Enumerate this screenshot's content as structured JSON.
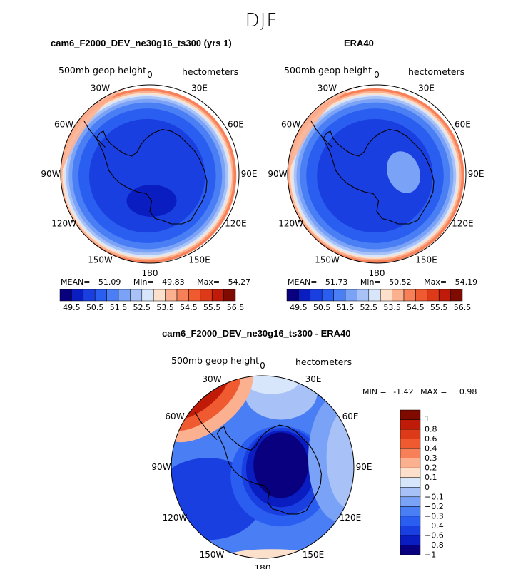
{
  "figure_title": "DJF",
  "colors": {
    "abs_scale": [
      "#08007e",
      "#0a1dc0",
      "#1a3fe0",
      "#2a5ef0",
      "#4a7ef4",
      "#7aa2f6",
      "#a8c2f8",
      "#d8e6fb",
      "#fde0cc",
      "#fbb090",
      "#f88058",
      "#ef5a30",
      "#dc3a18",
      "#c01a08",
      "#7e0a00"
    ],
    "diff_scale": [
      "#08007e",
      "#0a1dc0",
      "#1a3fe0",
      "#2a5ef0",
      "#4a7ef4",
      "#7aa2f6",
      "#a8c2f8",
      "#d8e6fb",
      "#fde0cc",
      "#fbb090",
      "#f88058",
      "#ef5a30",
      "#dc3a18",
      "#c01a08",
      "#7e0a00"
    ],
    "coast": "#000000"
  },
  "chart_data": [
    {
      "type": "polar-contour",
      "id": "model",
      "title": "cam6_F2000_DEV_ne30g16_ts300 (yrs 1)",
      "variable": "500mb geop height",
      "units": "hectometers",
      "lon_labels": [
        "0",
        "30E",
        "60E",
        "90E",
        "120E",
        "150E",
        "180",
        "150W",
        "120W",
        "90W",
        "60W",
        "30W"
      ],
      "stats": {
        "mean_label": "MEAN=",
        "mean": "51.09",
        "min_label": "Min=",
        "min": "49.83",
        "max_label": "Max=",
        "max": "54.27"
      },
      "colorbar_ticks": [
        "49.5",
        "50.5",
        "51.5",
        "52.5",
        "53.5",
        "54.5",
        "55.5",
        "56.5"
      ],
      "contour_levels": [
        49.5,
        50,
        50.5,
        51,
        51.5,
        52,
        52.5,
        53,
        53.5,
        54,
        54.5,
        55,
        55.5,
        56,
        56.5
      ]
    },
    {
      "type": "polar-contour",
      "id": "obs",
      "title": "ERA40",
      "variable": "500mb geop height",
      "units": "hectometers",
      "lon_labels": [
        "0",
        "30E",
        "60E",
        "90E",
        "120E",
        "150E",
        "180",
        "150W",
        "120W",
        "90W",
        "60W",
        "30W"
      ],
      "stats": {
        "mean_label": "MEAN=",
        "mean": "51.73",
        "min_label": "Min=",
        "min": "50.52",
        "max_label": "Max=",
        "max": "54.19"
      },
      "colorbar_ticks": [
        "49.5",
        "50.5",
        "51.5",
        "52.5",
        "53.5",
        "54.5",
        "55.5",
        "56.5"
      ],
      "contour_levels": [
        49.5,
        50,
        50.5,
        51,
        51.5,
        52,
        52.5,
        53,
        53.5,
        54,
        54.5,
        55,
        55.5,
        56,
        56.5
      ]
    },
    {
      "type": "polar-contour",
      "id": "diff",
      "title": "cam6_F2000_DEV_ne30g16_ts300 - ERA40",
      "variable": "500mb geop height",
      "units": "hectometers",
      "lon_labels": [
        "0",
        "30E",
        "60E",
        "90E",
        "120E",
        "150E",
        "180",
        "150W",
        "120W",
        "90W",
        "60W",
        "30W"
      ],
      "stats": {
        "min_label": "MIN =",
        "min": "-1.42",
        "max_label": "MAX =",
        "max": "0.98"
      },
      "colorbar_ticks": [
        "1",
        "0.8",
        "0.6",
        "0.4",
        "0.3",
        "0.2",
        "0.1",
        "0",
        "−0.1",
        "−0.2",
        "−0.3",
        "−0.4",
        "−0.6",
        "−0.8",
        "−1"
      ],
      "contour_levels": [
        -1,
        -0.8,
        -0.6,
        -0.4,
        -0.3,
        -0.2,
        -0.1,
        0,
        0.1,
        0.2,
        0.3,
        0.4,
        0.6,
        0.8,
        1
      ]
    }
  ]
}
